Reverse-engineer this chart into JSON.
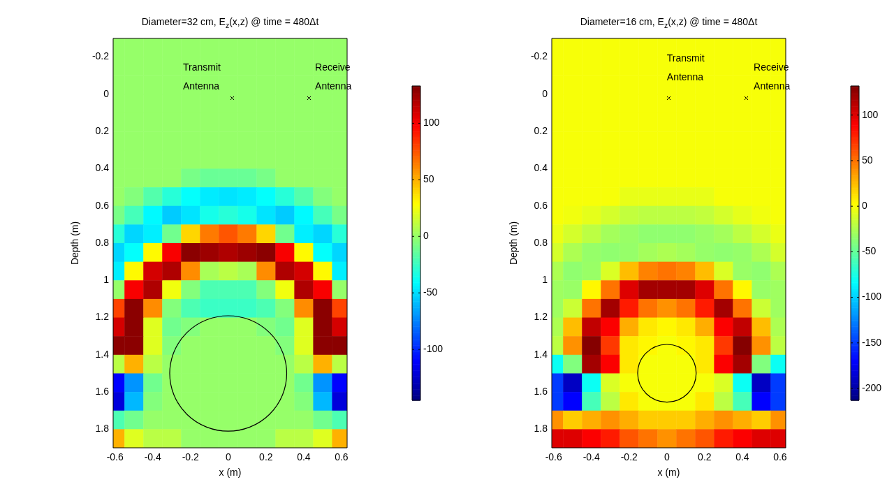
{
  "chart_data": [
    {
      "type": "heatmap",
      "title": "Diameter=32 cm, E$_{z}$(x,z) @ time = 480Δt",
      "xlabel": "x (m)",
      "ylabel": "Depth (m)",
      "xlim": [
        -0.61,
        0.63
      ],
      "ylim": [
        1.9,
        -0.3
      ],
      "xticks": [
        -0.6,
        -0.4,
        -0.2,
        0,
        0.2,
        0.4,
        0.6
      ],
      "yticks": [
        -0.2,
        0,
        0.2,
        0.4,
        0.6,
        0.8,
        1,
        1.2,
        1.4,
        1.6,
        1.8
      ],
      "clim": [
        -145,
        133
      ],
      "cticks": [
        -100,
        -50,
        0,
        50,
        100
      ],
      "x": [
        -0.6,
        -0.5,
        -0.4,
        -0.3,
        -0.2,
        -0.1,
        0,
        0.1,
        0.2,
        0.3,
        0.4,
        0.5,
        0.6
      ],
      "y": [
        -0.25,
        -0.15,
        -0.05,
        0.05,
        0.15,
        0.25,
        0.35,
        0.45,
        0.55,
        0.65,
        0.75,
        0.85,
        0.95,
        1.05,
        1.15,
        1.25,
        1.35,
        1.45,
        1.55,
        1.65,
        1.75,
        1.85
      ],
      "cells": [
        [
          0,
          0,
          0,
          0,
          0,
          0,
          0,
          0,
          0,
          0,
          0,
          0,
          0
        ],
        [
          0,
          0,
          0,
          0,
          0,
          0,
          0,
          0,
          0,
          0,
          0,
          0,
          0
        ],
        [
          0,
          0,
          0,
          0,
          0,
          0,
          0,
          0,
          0,
          0,
          0,
          0,
          0
        ],
        [
          0,
          0,
          0,
          0,
          0,
          0,
          0,
          0,
          0,
          0,
          0,
          0,
          0
        ],
        [
          0,
          0,
          0,
          0,
          0,
          0,
          0,
          0,
          0,
          0,
          0,
          0,
          0
        ],
        [
          0,
          0,
          0,
          0,
          0,
          0,
          0,
          0,
          0,
          0,
          0,
          0,
          0
        ],
        [
          0,
          0,
          0,
          0,
          0,
          0,
          0,
          0,
          0,
          0,
          0,
          0,
          0
        ],
        [
          0,
          0,
          0,
          0,
          -8,
          -12,
          -12,
          -12,
          -8,
          0,
          0,
          0,
          0
        ],
        [
          0,
          -5,
          -18,
          -30,
          -40,
          -46,
          -48,
          -46,
          -40,
          -30,
          -18,
          -5,
          0
        ],
        [
          -8,
          -22,
          -42,
          -55,
          -48,
          -35,
          -30,
          -35,
          -48,
          -55,
          -42,
          -22,
          -8
        ],
        [
          -30,
          -52,
          -45,
          -10,
          40,
          65,
          75,
          65,
          40,
          -10,
          -45,
          -52,
          -30
        ],
        [
          -52,
          -40,
          30,
          100,
          130,
          125,
          120,
          125,
          130,
          100,
          30,
          -40,
          -52
        ],
        [
          -45,
          30,
          110,
          120,
          60,
          5,
          10,
          5,
          60,
          120,
          110,
          30,
          -45
        ],
        [
          0,
          100,
          120,
          25,
          -5,
          -20,
          -20,
          -20,
          -5,
          25,
          120,
          100,
          0
        ],
        [
          80,
          130,
          60,
          -5,
          -20,
          -25,
          -25,
          -25,
          -20,
          -5,
          60,
          130,
          80
        ],
        [
          110,
          130,
          20,
          -10,
          -5,
          0,
          0,
          0,
          -5,
          -10,
          20,
          130,
          110
        ],
        [
          130,
          130,
          20,
          -5,
          0,
          0,
          0,
          0,
          0,
          -5,
          20,
          130,
          130
        ],
        [
          10,
          50,
          10,
          0,
          0,
          0,
          0,
          0,
          0,
          0,
          10,
          50,
          10
        ],
        [
          -110,
          -70,
          -10,
          0,
          0,
          0,
          0,
          0,
          0,
          0,
          -10,
          -70,
          -110
        ],
        [
          -120,
          -60,
          -5,
          0,
          0,
          0,
          0,
          0,
          0,
          0,
          -5,
          -60,
          -120
        ],
        [
          -20,
          -10,
          0,
          0,
          0,
          0,
          0,
          0,
          0,
          0,
          0,
          -10,
          -20
        ],
        [
          50,
          20,
          10,
          10,
          0,
          0,
          0,
          0,
          0,
          10,
          10,
          20,
          50
        ]
      ],
      "annotations": [
        "Transmit Antenna",
        "Receive Antenna"
      ]
    },
    {
      "type": "heatmap",
      "title": "Diameter=16 cm, E$_{z}$(x,z) @ time = 480Δt",
      "xlabel": "x (m)",
      "ylabel": "Depth (m)",
      "xlim": [
        -0.61,
        0.63
      ],
      "ylim": [
        1.9,
        -0.3
      ],
      "xticks": [
        -0.6,
        -0.4,
        -0.2,
        0,
        0.2,
        0.4,
        0.6
      ],
      "yticks": [
        -0.2,
        0,
        0.2,
        0.4,
        0.6,
        0.8,
        1,
        1.2,
        1.4,
        1.6,
        1.8
      ],
      "clim": [
        -213,
        132
      ],
      "cticks": [
        -200,
        -150,
        -100,
        -50,
        0,
        50,
        100
      ],
      "x": [
        -0.6,
        -0.5,
        -0.4,
        -0.3,
        -0.2,
        -0.1,
        0,
        0.1,
        0.2,
        0.3,
        0.4,
        0.5,
        0.6
      ],
      "y": [
        -0.25,
        -0.15,
        -0.05,
        0.05,
        0.15,
        0.25,
        0.35,
        0.45,
        0.55,
        0.65,
        0.75,
        0.85,
        0.95,
        1.05,
        1.15,
        1.25,
        1.35,
        1.45,
        1.55,
        1.65,
        1.75,
        1.85
      ],
      "cells": [
        [
          0,
          0,
          0,
          0,
          0,
          0,
          0,
          0,
          0,
          0,
          0,
          0,
          0
        ],
        [
          0,
          0,
          0,
          0,
          0,
          0,
          0,
          0,
          0,
          0,
          0,
          0,
          0
        ],
        [
          0,
          0,
          0,
          0,
          0,
          0,
          0,
          0,
          0,
          0,
          0,
          0,
          0
        ],
        [
          0,
          0,
          0,
          0,
          0,
          0,
          0,
          0,
          0,
          0,
          0,
          0,
          0
        ],
        [
          0,
          0,
          0,
          0,
          0,
          0,
          0,
          0,
          0,
          0,
          0,
          0,
          0
        ],
        [
          0,
          0,
          0,
          0,
          0,
          0,
          0,
          0,
          0,
          0,
          0,
          0,
          0
        ],
        [
          0,
          0,
          0,
          0,
          0,
          0,
          0,
          0,
          0,
          0,
          0,
          0,
          0
        ],
        [
          0,
          0,
          0,
          0,
          0,
          0,
          0,
          0,
          0,
          0,
          0,
          0,
          0
        ],
        [
          0,
          0,
          0,
          0,
          -5,
          -5,
          -5,
          -5,
          -5,
          0,
          0,
          0,
          0
        ],
        [
          0,
          -2,
          -6,
          -12,
          -18,
          -20,
          -20,
          -20,
          -18,
          -12,
          -6,
          -2,
          0
        ],
        [
          -4,
          -12,
          -20,
          -28,
          -32,
          -35,
          -35,
          -35,
          -32,
          -28,
          -20,
          -12,
          -4
        ],
        [
          -12,
          -25,
          -33,
          -35,
          -33,
          -28,
          -25,
          -28,
          -33,
          -35,
          -33,
          -25,
          -12
        ],
        [
          -25,
          -35,
          -32,
          -10,
          25,
          45,
          50,
          45,
          25,
          -10,
          -32,
          -35,
          -25
        ],
        [
          -30,
          -32,
          5,
          50,
          100,
          120,
          120,
          120,
          100,
          50,
          5,
          -32,
          -30
        ],
        [
          -30,
          -15,
          50,
          120,
          80,
          50,
          40,
          50,
          80,
          120,
          50,
          -15,
          -30
        ],
        [
          -25,
          25,
          110,
          90,
          30,
          10,
          5,
          10,
          30,
          90,
          110,
          25,
          -25
        ],
        [
          -20,
          40,
          130,
          70,
          10,
          5,
          0,
          5,
          10,
          70,
          130,
          40,
          -20
        ],
        [
          -80,
          -40,
          120,
          90,
          10,
          0,
          0,
          0,
          10,
          90,
          120,
          -40,
          -80
        ],
        [
          -150,
          -190,
          -80,
          -10,
          0,
          0,
          0,
          0,
          0,
          -10,
          -80,
          -190,
          -150
        ],
        [
          -150,
          -170,
          -60,
          -20,
          10,
          0,
          0,
          0,
          10,
          -20,
          -60,
          -170,
          -150
        ],
        [
          40,
          20,
          30,
          40,
          30,
          20,
          20,
          20,
          30,
          40,
          30,
          20,
          40
        ],
        [
          100,
          100,
          90,
          80,
          60,
          50,
          40,
          50,
          60,
          80,
          90,
          100,
          100
        ]
      ],
      "annotations": [
        "Transmit Antenna",
        "Receive Antenna"
      ]
    }
  ]
}
